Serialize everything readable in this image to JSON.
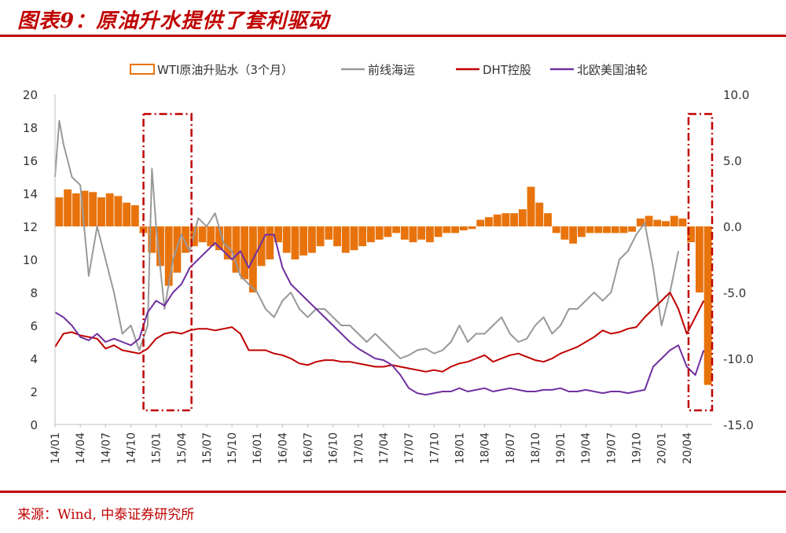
{
  "title": "图表9：原油升水提供了套利驱动",
  "source": "来源：Wind, 中泰证券研究所",
  "colors": {
    "accent": "#c00000",
    "spread": "#e8730c",
    "frontline": "#999999",
    "dht": "#c00000",
    "nat": "#7030a0",
    "annotation": "#c00000"
  },
  "chart_data": {
    "type": "line",
    "legend": [
      {
        "name": "WTI原油升贴水（3个月）",
        "kind": "bar",
        "color": "#e8730c"
      },
      {
        "name": "前线海运",
        "kind": "line",
        "color": "#999999"
      },
      {
        "name": "DHT控股",
        "kind": "line",
        "color": "#c00000"
      },
      {
        "name": "北欧美国油轮",
        "kind": "line",
        "color": "#7030a0"
      }
    ],
    "x_ticks": [
      "14/01",
      "14/04",
      "14/07",
      "14/10",
      "15/01",
      "15/04",
      "15/07",
      "15/10",
      "16/01",
      "16/04",
      "16/07",
      "16/10",
      "17/01",
      "17/04",
      "17/07",
      "17/10",
      "18/01",
      "18/04",
      "18/07",
      "18/10",
      "19/01",
      "19/04",
      "19/07",
      "19/10",
      "20/01",
      "20/04"
    ],
    "xlim": [
      0,
      78
    ],
    "y_left": {
      "ticks": [
        "0",
        "2",
        "4",
        "6",
        "8",
        "10",
        "12",
        "14",
        "16",
        "18",
        "20"
      ],
      "range": [
        0,
        20
      ]
    },
    "y_right": {
      "ticks": [
        "-15.0",
        "-10.0",
        "-5.0",
        "0.0",
        "5.0",
        "10.0"
      ],
      "range": [
        -15,
        10
      ]
    },
    "highlight_ranges": [
      [
        10.5,
        16.2
      ],
      [
        75.2,
        78
      ]
    ],
    "series": [
      {
        "name": "WTI原油升贴水（3个月）",
        "axis": "right",
        "type": "bar",
        "x_months_since_2014_01": [
          0,
          1,
          2,
          3,
          4,
          5,
          6,
          7,
          8,
          9,
          10,
          11,
          12,
          13,
          14,
          15,
          16,
          17,
          18,
          19,
          20,
          21,
          22,
          23,
          24,
          25,
          26,
          27,
          28,
          29,
          30,
          31,
          32,
          33,
          34,
          35,
          36,
          37,
          38,
          39,
          40,
          41,
          42,
          43,
          44,
          45,
          46,
          47,
          48,
          49,
          50,
          51,
          52,
          53,
          54,
          55,
          56,
          57,
          58,
          59,
          60,
          61,
          62,
          63,
          64,
          65,
          66,
          67,
          68,
          69,
          70,
          71,
          72,
          73,
          74,
          75,
          76,
          77
        ],
        "values": [
          2.2,
          2.8,
          2.5,
          2.7,
          2.6,
          2.2,
          2.5,
          2.3,
          1.8,
          1.6,
          -0.5,
          -2.0,
          -3.0,
          -4.5,
          -3.5,
          -2.0,
          -1.5,
          -1.2,
          -1.5,
          -1.8,
          -2.5,
          -3.5,
          -4.0,
          -5.0,
          -3.0,
          -2.5,
          -1.2,
          -2.0,
          -2.5,
          -2.2,
          -2.0,
          -1.5,
          -1.0,
          -1.5,
          -2.0,
          -1.8,
          -1.5,
          -1.2,
          -1.0,
          -0.8,
          -0.5,
          -1.0,
          -1.2,
          -1.0,
          -1.2,
          -0.8,
          -0.5,
          -0.5,
          -0.3,
          -0.2,
          0.5,
          0.7,
          0.9,
          1.0,
          1.0,
          1.3,
          3.0,
          1.8,
          1.0,
          -0.5,
          -1.0,
          -1.3,
          -0.8,
          -0.5,
          -0.5,
          -0.5,
          -0.5,
          -0.5,
          -0.4,
          0.6,
          0.8,
          0.5,
          0.4,
          0.8,
          0.6,
          -1.2,
          -5.0,
          -12.0
        ]
      },
      {
        "name": "前线海运",
        "axis": "left",
        "type": "line",
        "x_months_since_2014_01": [
          0,
          0.5,
          1,
          1.5,
          2,
          3,
          4,
          5,
          6,
          7,
          8,
          9,
          10,
          11,
          11.5,
          12,
          13,
          14,
          15,
          16,
          17,
          18,
          19,
          20,
          21,
          22,
          23,
          24,
          25,
          26,
          27,
          28,
          29,
          30,
          31,
          32,
          33,
          34,
          35,
          36,
          37,
          38,
          39,
          40,
          41,
          42,
          43,
          44,
          45,
          46,
          47,
          48,
          49,
          50,
          51,
          52,
          53,
          54,
          55,
          56,
          57,
          58,
          59,
          60,
          61,
          62,
          63,
          64,
          65,
          66,
          67,
          68,
          69,
          70,
          71,
          72,
          73,
          74,
          75,
          76,
          77
        ],
        "values": [
          15,
          18.4,
          17,
          16,
          15,
          14.5,
          9,
          12,
          10,
          8,
          5.5,
          6,
          4.5,
          6,
          15.5,
          12,
          7,
          10,
          11.5,
          10.5,
          12.5,
          12,
          12.8,
          11,
          10.5,
          9,
          8.5,
          8,
          7,
          6.5,
          7.5,
          8,
          7,
          6.5,
          7,
          7,
          6.5,
          6,
          6,
          5.5,
          5,
          5.5,
          5,
          4.5,
          4,
          4.2,
          4.5,
          4.6,
          4.3,
          4.5,
          5,
          6,
          5,
          5.5,
          5.5,
          6,
          6.5,
          5.5,
          5,
          5.2,
          6,
          6.5,
          5.5,
          6,
          7,
          7,
          7.5,
          8,
          7.5,
          8,
          10,
          10.5,
          11.5,
          12.2,
          9.5,
          6,
          8,
          10.5
        ]
      },
      {
        "name": "DHT控股",
        "axis": "left",
        "type": "line",
        "x_months_since_2014_01": [
          0,
          1,
          2,
          3,
          4,
          5,
          6,
          7,
          8,
          9,
          10,
          11,
          12,
          13,
          14,
          15,
          16,
          17,
          18,
          19,
          20,
          21,
          22,
          23,
          24,
          25,
          26,
          27,
          28,
          29,
          30,
          31,
          32,
          33,
          34,
          35,
          36,
          37,
          38,
          39,
          40,
          41,
          42,
          43,
          44,
          45,
          46,
          47,
          48,
          49,
          50,
          51,
          52,
          53,
          54,
          55,
          56,
          57,
          58,
          59,
          60,
          61,
          62,
          63,
          64,
          65,
          66,
          67,
          68,
          69,
          70,
          71,
          72,
          73,
          74,
          75,
          76,
          77
        ],
        "values": [
          4.7,
          5.5,
          5.6,
          5.4,
          5.3,
          5.2,
          4.6,
          4.8,
          4.5,
          4.4,
          4.3,
          4.6,
          5.2,
          5.5,
          5.6,
          5.5,
          5.7,
          5.8,
          5.8,
          5.7,
          5.8,
          5.9,
          5.5,
          4.5,
          4.5,
          4.5,
          4.3,
          4.2,
          4.0,
          3.7,
          3.6,
          3.8,
          3.9,
          3.9,
          3.8,
          3.8,
          3.7,
          3.6,
          3.5,
          3.5,
          3.6,
          3.5,
          3.4,
          3.3,
          3.2,
          3.3,
          3.2,
          3.5,
          3.7,
          3.8,
          4.0,
          4.2,
          3.8,
          4.0,
          4.2,
          4.3,
          4.1,
          3.9,
          3.8,
          4.0,
          4.3,
          4.5,
          4.7,
          5.0,
          5.3,
          5.7,
          5.5,
          5.6,
          5.8,
          5.9,
          6.5,
          7.0,
          7.5,
          8.0,
          7.0,
          5.5,
          6.5,
          7.5
        ]
      },
      {
        "name": "北欧美国油轮",
        "axis": "left",
        "type": "line",
        "x_months_since_2014_01": [
          0,
          1,
          2,
          3,
          4,
          5,
          6,
          7,
          8,
          9,
          10,
          11,
          12,
          13,
          14,
          15,
          16,
          17,
          18,
          19,
          20,
          21,
          22,
          23,
          24,
          25,
          26,
          27,
          28,
          29,
          30,
          31,
          32,
          33,
          34,
          35,
          36,
          37,
          38,
          39,
          40,
          41,
          42,
          43,
          44,
          45,
          46,
          47,
          48,
          49,
          50,
          51,
          52,
          53,
          54,
          55,
          56,
          57,
          58,
          59,
          60,
          61,
          62,
          63,
          64,
          65,
          66,
          67,
          68,
          69,
          70,
          71,
          72,
          73,
          74,
          75,
          76,
          77
        ],
        "values": [
          6.8,
          6.5,
          6.0,
          5.3,
          5.1,
          5.5,
          5.0,
          5.2,
          5.0,
          4.8,
          5.2,
          6.8,
          7.5,
          7.2,
          8.0,
          8.5,
          9.5,
          10.0,
          10.5,
          11.0,
          10.5,
          10.0,
          10.5,
          9.5,
          10.5,
          11.5,
          11.5,
          9.5,
          8.5,
          8.0,
          7.5,
          7.0,
          6.5,
          6.0,
          5.5,
          5.0,
          4.6,
          4.3,
          4.0,
          3.9,
          3.6,
          3.0,
          2.2,
          1.9,
          1.8,
          1.9,
          2.0,
          2.0,
          2.2,
          2.0,
          2.1,
          2.2,
          2.0,
          2.1,
          2.2,
          2.1,
          2.0,
          2.0,
          2.1,
          2.1,
          2.2,
          2.0,
          2.0,
          2.1,
          2.0,
          1.9,
          2.0,
          2.0,
          1.9,
          2.0,
          2.1,
          3.5,
          4.0,
          4.5,
          4.8,
          3.5,
          3.0,
          4.5
        ]
      }
    ]
  }
}
